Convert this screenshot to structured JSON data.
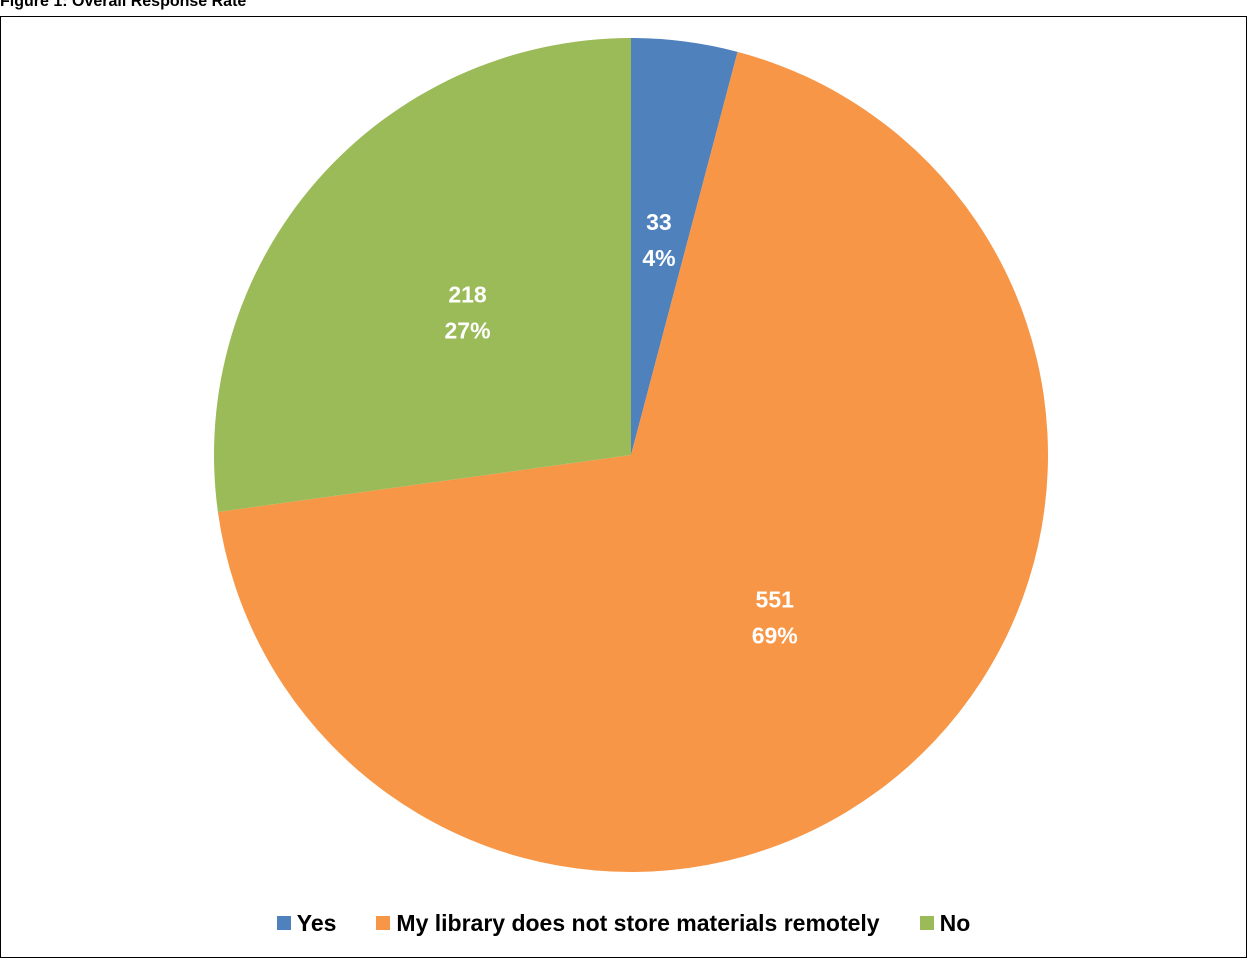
{
  "caption": "Figure 1: Overall Response Rate",
  "chart_data": {
    "type": "pie",
    "title": "",
    "slices": [
      {
        "category": "Yes",
        "value": 33,
        "percent_label": "4%",
        "color": "#4F81BD"
      },
      {
        "category": "My library does not store materials remotely",
        "value": 551,
        "percent_label": "69%",
        "color": "#F79646"
      },
      {
        "category": "No",
        "value": 218,
        "percent_label": "27%",
        "color": "#9BBB59"
      }
    ],
    "start_angle_deg": 0,
    "direction": "clockwise",
    "legend_position": "bottom",
    "label_color": "#FFFFFF"
  }
}
